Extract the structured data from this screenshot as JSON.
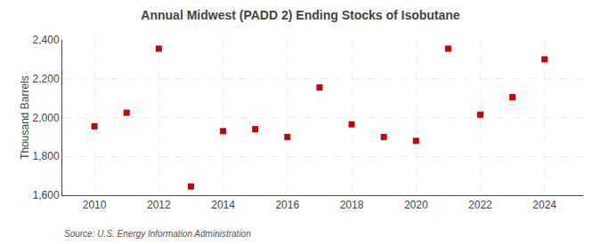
{
  "chart_data": {
    "type": "scatter",
    "title": "Annual Midwest (PADD 2) Ending Stocks of Isobutane",
    "ylabel": "Thousand Barrels",
    "annotations": [
      "Source: U.S. Energy Information Administration"
    ],
    "x": [
      2010,
      2011,
      2012,
      2013,
      2014,
      2015,
      2016,
      2017,
      2018,
      2019,
      2020,
      2021,
      2022,
      2023,
      2024
    ],
    "values": [
      1955,
      2025,
      2355,
      1645,
      1930,
      1940,
      1900,
      2155,
      1965,
      1900,
      1880,
      2355,
      2015,
      2105,
      2300
    ],
    "color": "#cc0000",
    "marker": "square",
    "xlim": [
      2009.0,
      2025.2
    ],
    "xticks": [
      2010,
      2012,
      2014,
      2016,
      2018,
      2020,
      2022,
      2024
    ],
    "ylim": [
      1600,
      2400
    ],
    "yticks": [
      {
        "value": 1600,
        "label": "1,600"
      },
      {
        "value": 1800,
        "label": "1,800"
      },
      {
        "value": 2000,
        "label": "2,000"
      },
      {
        "value": 2200,
        "label": "2,200"
      },
      {
        "value": 2400,
        "label": "2,400"
      }
    ],
    "grid": true
  }
}
